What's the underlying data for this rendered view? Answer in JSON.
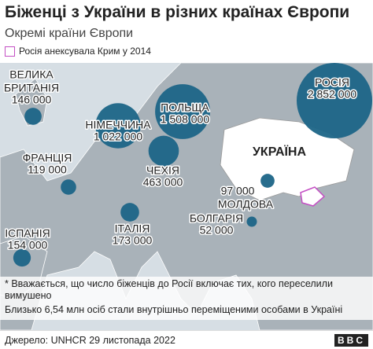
{
  "header": {
    "title": "Біженці з України в різних країнах Європи",
    "subtitle": "Окремі країни Європи"
  },
  "legend": {
    "label": "Росія анексувала Крим у 2014"
  },
  "countries": [
    {
      "name_lines": [
        "ВЕЛИКА",
        "БРИТАНІЯ"
      ],
      "value": 146000,
      "value_label": "146 000"
    },
    {
      "name_lines": [
        "НІМЕЧЧИНА"
      ],
      "value": 1022000,
      "value_label": "1 022 000"
    },
    {
      "name_lines": [
        "ПОЛЬЩА"
      ],
      "value": 1508000,
      "value_label": "1 508 000"
    },
    {
      "name_lines": [
        "РОСІЯ"
      ],
      "value": 2852000,
      "value_label": "2 852 000"
    },
    {
      "name_lines": [
        "ФРАНЦІЯ"
      ],
      "value": 119000,
      "value_label": "119 000"
    },
    {
      "name_lines": [
        "ЧЕХІЯ"
      ],
      "value": 463000,
      "value_label": "463 000"
    },
    {
      "name_lines": [
        "МОЛДОВА"
      ],
      "value": 97000,
      "value_label": "97 000"
    },
    {
      "name_lines": [
        "ІТАЛІЯ"
      ],
      "value": 173000,
      "value_label": "173 000"
    },
    {
      "name_lines": [
        "БОЛГАРІЯ"
      ],
      "value": 52000,
      "value_label": "52 000"
    },
    {
      "name_lines": [
        "ІСПАНІЯ"
      ],
      "value": 154000,
      "value_label": "154 000"
    }
  ],
  "map_labels": {
    "ukraine": "УКРАЇНА"
  },
  "notes": [
    "* Вважається, що число біженців до Росії включає тих, кого переселили вимушено",
    "Близько 6,54 млн осіб стали внутрішньо переміщеними особами в Україні"
  ],
  "source": "Джерело: UNHCR 29 листопада 2022",
  "logo": "BBC"
}
